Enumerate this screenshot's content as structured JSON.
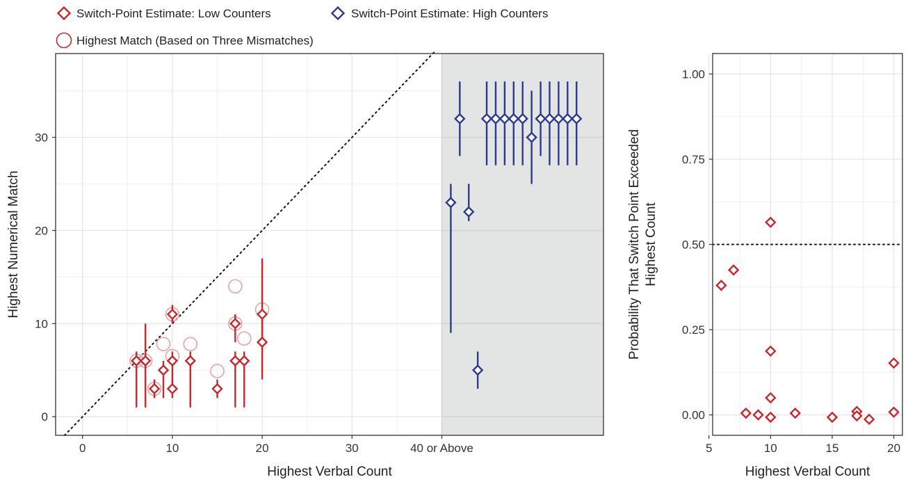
{
  "legend": {
    "low": "Switch-Point Estimate: Low Counters",
    "high": "Switch-Point Estimate: High Counters",
    "match": "Highest Match (Based on Three Mismatches)"
  },
  "colors": {
    "low": "#c9252b",
    "high": "#2b3990",
    "match": "#e8a0a3",
    "panel_shade": "#e3e4e4",
    "grid": "#e6e6e6"
  },
  "chart_data": [
    {
      "type": "scatter",
      "xlabel": "Highest Verbal Count",
      "ylabel": "Highest Numerical Match",
      "xlim": [
        -3,
        58
      ],
      "ylim": [
        -2,
        39
      ],
      "x_ticks": [
        {
          "value": 0,
          "label": "0"
        },
        {
          "value": 10,
          "label": "10"
        },
        {
          "value": 20,
          "label": "20"
        },
        {
          "value": 30,
          "label": "30"
        },
        {
          "value": 40,
          "label": "40 or Above"
        }
      ],
      "y_ticks": [
        {
          "value": 0,
          "label": "0"
        },
        {
          "value": 10,
          "label": "10"
        },
        {
          "value": 20,
          "label": "20"
        },
        {
          "value": 30,
          "label": "30"
        }
      ],
      "shaded_region_x_from": 40,
      "reference_line": "y = x (dotted)",
      "low_counters": [
        {
          "x": 6,
          "y": 6,
          "lo": 1,
          "hi": 7
        },
        {
          "x": 7,
          "y": 6,
          "lo": 1,
          "hi": 10
        },
        {
          "x": 8,
          "y": 3,
          "lo": 2,
          "hi": 4
        },
        {
          "x": 9,
          "y": 5,
          "lo": 2,
          "hi": 6
        },
        {
          "x": 10,
          "y": 11,
          "lo": 10,
          "hi": 12
        },
        {
          "x": 10,
          "y": 6,
          "lo": 3,
          "hi": 7
        },
        {
          "x": 10,
          "y": 3,
          "lo": 2,
          "hi": 4
        },
        {
          "x": 12,
          "y": 6,
          "lo": 1,
          "hi": 7
        },
        {
          "x": 15,
          "y": 3,
          "lo": 2,
          "hi": 4
        },
        {
          "x": 17,
          "y": 10,
          "lo": 8,
          "hi": 11
        },
        {
          "x": 17,
          "y": 6,
          "lo": 1,
          "hi": 7
        },
        {
          "x": 18,
          "y": 6,
          "lo": 1,
          "hi": 7
        },
        {
          "x": 20,
          "y": 11,
          "lo": 7,
          "hi": 17
        },
        {
          "x": 20,
          "y": 8,
          "lo": 4,
          "hi": 11
        }
      ],
      "high_counters": [
        {
          "x": 41,
          "y": 23,
          "lo": 9,
          "hi": 25
        },
        {
          "x": 42,
          "y": 32,
          "lo": 28,
          "hi": 36
        },
        {
          "x": 43,
          "y": 22,
          "lo": 21,
          "hi": 25
        },
        {
          "x": 44,
          "y": 5,
          "lo": 3,
          "hi": 7
        },
        {
          "x": 45,
          "y": 32,
          "lo": 27,
          "hi": 36
        },
        {
          "x": 46,
          "y": 32,
          "lo": 27,
          "hi": 36
        },
        {
          "x": 47,
          "y": 32,
          "lo": 27,
          "hi": 36
        },
        {
          "x": 48,
          "y": 32,
          "lo": 27,
          "hi": 36
        },
        {
          "x": 49,
          "y": 32,
          "lo": 27,
          "hi": 36
        },
        {
          "x": 50,
          "y": 30,
          "lo": 25,
          "hi": 35
        },
        {
          "x": 51,
          "y": 32,
          "lo": 28,
          "hi": 36
        },
        {
          "x": 52,
          "y": 32,
          "lo": 27,
          "hi": 36
        },
        {
          "x": 53,
          "y": 32,
          "lo": 27,
          "hi": 36
        },
        {
          "x": 54,
          "y": 32,
          "lo": 27,
          "hi": 36
        },
        {
          "x": 55,
          "y": 32,
          "lo": 27,
          "hi": 36
        }
      ],
      "highest_match": [
        {
          "x": 6,
          "y": 6
        },
        {
          "x": 7,
          "y": 6
        },
        {
          "x": 8,
          "y": 3
        },
        {
          "x": 9,
          "y": 7.8
        },
        {
          "x": 10,
          "y": 11
        },
        {
          "x": 10,
          "y": 6.5
        },
        {
          "x": 12,
          "y": 7.8
        },
        {
          "x": 15,
          "y": 4.9
        },
        {
          "x": 17,
          "y": 14
        },
        {
          "x": 17,
          "y": 10
        },
        {
          "x": 18,
          "y": 8.4
        },
        {
          "x": 20,
          "y": 11.5
        }
      ]
    },
    {
      "type": "scatter",
      "xlabel": "Highest Verbal Count",
      "ylabel": [
        "Probability That Switch Point Exceeded",
        "Highest Count"
      ],
      "xlim": [
        5.3,
        20.7
      ],
      "ylim": [
        -0.06,
        1.06
      ],
      "x_ticks": [
        {
          "value": 5,
          "label": "5"
        },
        {
          "value": 10,
          "label": "10"
        },
        {
          "value": 15,
          "label": "15"
        },
        {
          "value": 20,
          "label": "20"
        }
      ],
      "y_ticks": [
        {
          "value": 0,
          "label": "0.00"
        },
        {
          "value": 0.25,
          "label": "0.25"
        },
        {
          "value": 0.5,
          "label": "0.50"
        },
        {
          "value": 0.75,
          "label": "0.75"
        },
        {
          "value": 1.0,
          "label": "1.00"
        }
      ],
      "reference_line_y": 0.5,
      "points": [
        {
          "x": 6,
          "y": 0.38
        },
        {
          "x": 7,
          "y": 0.425
        },
        {
          "x": 8,
          "y": 0.005
        },
        {
          "x": 9,
          "y": 0.0
        },
        {
          "x": 10,
          "y": 0.565
        },
        {
          "x": 10,
          "y": 0.187
        },
        {
          "x": 10,
          "y": 0.05
        },
        {
          "x": 10,
          "y": -0.007
        },
        {
          "x": 12,
          "y": 0.005
        },
        {
          "x": 15,
          "y": -0.007
        },
        {
          "x": 17,
          "y": 0.01
        },
        {
          "x": 17,
          "y": -0.003
        },
        {
          "x": 18,
          "y": -0.013
        },
        {
          "x": 20,
          "y": 0.152
        },
        {
          "x": 20,
          "y": 0.008
        }
      ]
    }
  ]
}
